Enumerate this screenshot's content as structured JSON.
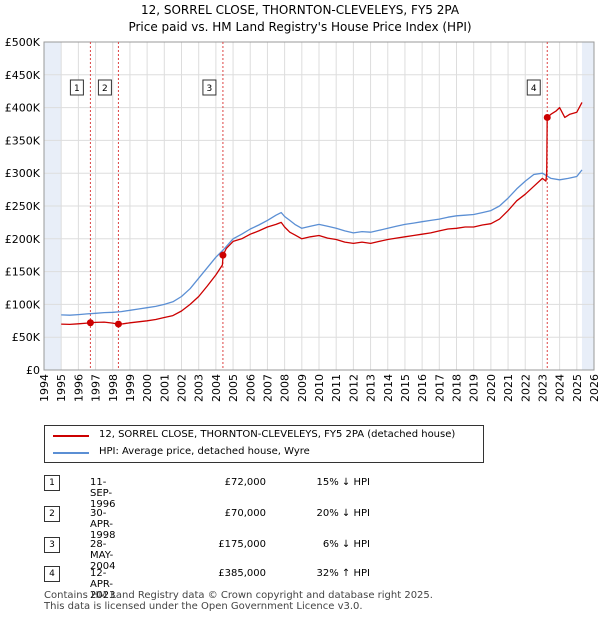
{
  "chart_data": {
    "type": "line",
    "title": "12, SORREL CLOSE, THORNTON-CLEVELEYS, FY5 2PA",
    "subtitle": "Price paid vs. HM Land Registry's House Price Index (HPI)",
    "xlim": [
      1994,
      2026
    ],
    "ylim": [
      0,
      500000
    ],
    "x_ticks": [
      1994,
      1995,
      1996,
      1997,
      1998,
      1999,
      2000,
      2001,
      2002,
      2003,
      2004,
      2005,
      2006,
      2007,
      2008,
      2009,
      2010,
      2011,
      2012,
      2013,
      2014,
      2015,
      2016,
      2017,
      2018,
      2019,
      2020,
      2021,
      2022,
      2023,
      2024,
      2025,
      2026
    ],
    "y_ticks": [
      {
        "value": 0,
        "label": "£0"
      },
      {
        "value": 50000,
        "label": "£50K"
      },
      {
        "value": 100000,
        "label": "£100K"
      },
      {
        "value": 150000,
        "label": "£150K"
      },
      {
        "value": 200000,
        "label": "£200K"
      },
      {
        "value": 250000,
        "label": "£250K"
      },
      {
        "value": 300000,
        "label": "£300K"
      },
      {
        "value": 350000,
        "label": "£350K"
      },
      {
        "value": 400000,
        "label": "£400K"
      },
      {
        "value": 450000,
        "label": "£450K"
      },
      {
        "value": 500000,
        "label": "£500K"
      }
    ],
    "grid": true,
    "colors": {
      "property": "#cc0000",
      "hpi": "#5b8fd4",
      "shade": "#e8eef8"
    },
    "series": [
      {
        "name": "12, SORREL CLOSE, THORNTON-CLEVELEYS, FY5 2PA (detached house)",
        "color": "#cc0000",
        "x": [
          1995.0,
          1995.5,
          1996.0,
          1996.5,
          1996.7,
          1997.0,
          1997.5,
          1998.0,
          1998.3,
          1998.6,
          1999.0,
          1999.5,
          2000.0,
          2000.5,
          2001.0,
          2001.5,
          2002.0,
          2002.5,
          2003.0,
          2003.5,
          2004.0,
          2004.38,
          2004.42,
          2004.6,
          2005.0,
          2005.5,
          2006.0,
          2006.5,
          2007.0,
          2007.5,
          2007.8,
          2008.0,
          2008.3,
          2008.6,
          2009.0,
          2009.5,
          2010.0,
          2010.5,
          2011.0,
          2011.5,
          2012.0,
          2012.5,
          2013.0,
          2013.5,
          2014.0,
          2014.5,
          2015.0,
          2015.5,
          2016.0,
          2016.5,
          2017.0,
          2017.5,
          2018.0,
          2018.5,
          2019.0,
          2019.5,
          2020.0,
          2020.5,
          2021.0,
          2021.5,
          2022.0,
          2022.5,
          2023.0,
          2023.2,
          2023.25,
          2023.28,
          2023.5,
          2023.8,
          2024.0,
          2024.3,
          2024.6,
          2025.0,
          2025.3
        ],
        "values": [
          70000,
          69500,
          70500,
          71500,
          72000,
          72500,
          73000,
          71500,
          70000,
          70500,
          72000,
          73500,
          75000,
          77000,
          80000,
          83000,
          90000,
          100000,
          112000,
          128000,
          145000,
          160000,
          175000,
          185000,
          196000,
          200000,
          207000,
          212000,
          218000,
          222000,
          225000,
          218000,
          210000,
          206000,
          200000,
          203000,
          205000,
          201000,
          199000,
          195000,
          193000,
          195000,
          193000,
          196000,
          199000,
          201000,
          203000,
          205000,
          207000,
          209000,
          212000,
          215000,
          216000,
          218000,
          218000,
          221000,
          223000,
          230000,
          243000,
          258000,
          268000,
          280000,
          292000,
          288000,
          300000,
          385000,
          390000,
          395000,
          400000,
          385000,
          390000,
          393000,
          408000
        ]
      },
      {
        "name": "HPI: Average price, detached house, Wyre",
        "color": "#5b8fd4",
        "x": [
          1995.0,
          1995.5,
          1996.0,
          1996.5,
          1997.0,
          1997.5,
          1998.0,
          1998.5,
          1999.0,
          1999.5,
          2000.0,
          2000.5,
          2001.0,
          2001.5,
          2002.0,
          2002.5,
          2003.0,
          2003.5,
          2004.0,
          2004.5,
          2005.0,
          2005.5,
          2006.0,
          2006.5,
          2007.0,
          2007.5,
          2007.8,
          2008.0,
          2008.3,
          2008.6,
          2009.0,
          2009.5,
          2010.0,
          2010.5,
          2011.0,
          2011.5,
          2012.0,
          2012.5,
          2013.0,
          2013.5,
          2014.0,
          2014.5,
          2015.0,
          2015.5,
          2016.0,
          2016.5,
          2017.0,
          2017.5,
          2018.0,
          2018.5,
          2019.0,
          2019.5,
          2020.0,
          2020.5,
          2021.0,
          2021.5,
          2022.0,
          2022.5,
          2023.0,
          2023.5,
          2024.0,
          2024.5,
          2025.0,
          2025.3
        ],
        "values": [
          84000,
          83500,
          84500,
          85500,
          86500,
          87500,
          88000,
          89000,
          91000,
          93000,
          95000,
          97000,
          100000,
          104000,
          112000,
          124000,
          140000,
          156000,
          172000,
          185000,
          200000,
          207000,
          215000,
          221000,
          228000,
          236000,
          240000,
          234000,
          228000,
          222000,
          216000,
          219000,
          222000,
          219000,
          216000,
          212000,
          209000,
          211000,
          210000,
          213000,
          216000,
          219000,
          222000,
          224000,
          226000,
          228000,
          230000,
          233000,
          235000,
          236000,
          237000,
          240000,
          243000,
          250000,
          262000,
          276000,
          288000,
          298000,
          300000,
          292000,
          290000,
          292000,
          295000,
          305000
        ]
      }
    ],
    "transactions": [
      {
        "id": "1",
        "date": "11-SEP-1996",
        "x": 1996.7,
        "price": 72000,
        "price_label": "£72,000",
        "hpi": "15% ↓ HPI"
      },
      {
        "id": "2",
        "date": "30-APR-1998",
        "x": 1998.33,
        "price": 70000,
        "price_label": "£70,000",
        "hpi": "20% ↓ HPI"
      },
      {
        "id": "3",
        "date": "28-MAY-2004",
        "x": 2004.41,
        "price": 175000,
        "price_label": "£175,000",
        "hpi": "6% ↓ HPI"
      },
      {
        "id": "4",
        "date": "12-APR-2023",
        "x": 2023.28,
        "price": 385000,
        "price_label": "£385,000",
        "hpi": "32% ↑ HPI"
      }
    ],
    "shaded_ranges": [
      [
        1994,
        1995.0
      ],
      [
        2025.3,
        2026
      ]
    ]
  },
  "legend": {
    "property_label": "12, SORREL CLOSE, THORNTON-CLEVELEYS, FY5 2PA (detached house)",
    "hpi_label": "HPI: Average price, detached house, Wyre"
  },
  "footer": {
    "line1": "Contains HM Land Registry data © Crown copyright and database right 2025.",
    "line2": "This data is licensed under the Open Government Licence v3.0."
  }
}
